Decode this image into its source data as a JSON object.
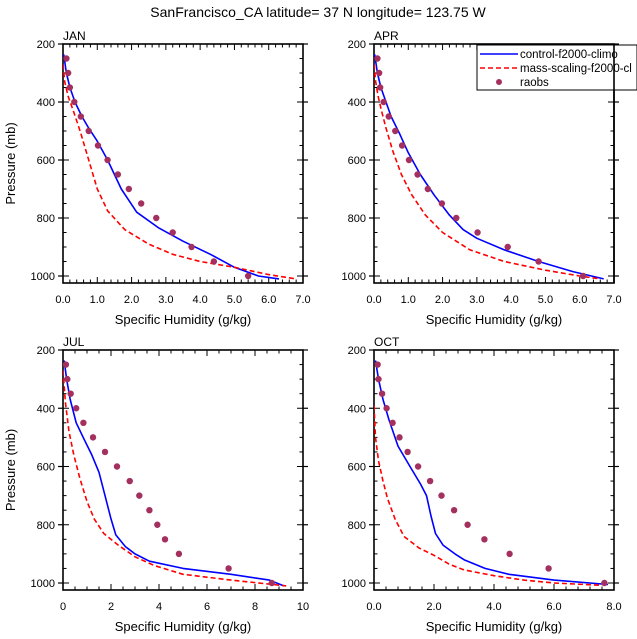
{
  "chart_data": {
    "title": "SanFrancisco_CA  latitude= 37 N longitude= 123.75 W",
    "legend": {
      "placement": "top-right",
      "entries": [
        {
          "name": "control-f2000-climo",
          "color": "#0000ff",
          "style": "solid"
        },
        {
          "name": "mass-scaling-f2000-cl",
          "color": "#ff0000",
          "style": "dashed"
        },
        {
          "name": "raobs",
          "color": "#a3305e",
          "style": "marker"
        }
      ]
    },
    "panels": [
      {
        "type": "line",
        "label": "JAN",
        "xlabel": "Specific Humidity (g/kg)",
        "ylabel": "Pressure (mb)",
        "xlim": [
          0,
          7
        ],
        "ylim": [
          1000,
          200
        ],
        "xticks": [
          "0.0",
          "1.0",
          "2.0",
          "3.0",
          "4.0",
          "5.0",
          "6.0",
          "7.0"
        ],
        "yticks": [
          "200",
          "400",
          "600",
          "800",
          "1000"
        ],
        "show_ylabel": true,
        "show_legend": false,
        "series": [
          {
            "name": "control-f2000-climo",
            "x": [
              0.02,
              0.1,
              0.2,
              0.35,
              0.55,
              0.75,
              1.0,
              1.3,
              1.7,
              2.15,
              2.8,
              3.5,
              4.3,
              5.0,
              5.7,
              6.3
            ],
            "y": [
              236,
              300,
              350,
              400,
              450,
              490,
              535,
              600,
              700,
              780,
              835,
              880,
              925,
              970,
              1000,
              1010
            ]
          },
          {
            "name": "mass-scaling-f2000-cl",
            "x": [
              0.0,
              0.05,
              0.15,
              0.3,
              0.5,
              0.75,
              1.0,
              1.3,
              1.8,
              2.5,
              3.2,
              4.0,
              5.0,
              6.0,
              6.8
            ],
            "y": [
              270,
              330,
              380,
              430,
              500,
              600,
              700,
              775,
              840,
              890,
              925,
              950,
              970,
              995,
              1010
            ]
          },
          {
            "name": "raobs",
            "x": [
              0.1,
              0.15,
              0.2,
              0.33,
              0.52,
              0.75,
              1.02,
              1.3,
              1.6,
              1.92,
              2.28,
              2.72,
              3.2,
              3.75,
              4.4,
              5.4
            ],
            "y": [
              250,
              300,
              350,
              400,
              450,
              500,
              550,
              600,
              650,
              700,
              750,
              800,
              850,
              900,
              950,
              1000
            ]
          }
        ]
      },
      {
        "type": "line",
        "label": "APR",
        "xlabel": "Specific Humidity (g/kg)",
        "ylabel": "",
        "xlim": [
          0,
          7
        ],
        "ylim": [
          1000,
          200
        ],
        "xticks": [
          "0.0",
          "1.0",
          "2.0",
          "3.0",
          "4.0",
          "5.0",
          "6.0",
          "7.0"
        ],
        "yticks": [
          "200",
          "400",
          "600",
          "800",
          "1000"
        ],
        "show_ylabel": false,
        "show_legend": true,
        "series": [
          {
            "name": "control-f2000-climo",
            "x": [
              0.02,
              0.1,
              0.2,
              0.35,
              0.5,
              0.75,
              1.0,
              1.35,
              1.75,
              2.2,
              2.6,
              3.0,
              3.8,
              4.8,
              5.8,
              6.7
            ],
            "y": [
              236,
              300,
              350,
              400,
              450,
              510,
              575,
              650,
              720,
              790,
              840,
              870,
              910,
              950,
              985,
              1010
            ]
          },
          {
            "name": "mass-scaling-f2000-cl",
            "x": [
              0.0,
              0.05,
              0.12,
              0.22,
              0.35,
              0.55,
              0.8,
              1.1,
              1.5,
              2.0,
              2.8,
              3.8,
              5.0,
              6.0,
              6.6
            ],
            "y": [
              270,
              330,
              380,
              430,
              490,
              570,
              650,
              720,
              790,
              850,
              910,
              950,
              980,
              1000,
              1010
            ]
          },
          {
            "name": "raobs",
            "x": [
              0.1,
              0.15,
              0.18,
              0.28,
              0.43,
              0.62,
              0.82,
              1.02,
              1.27,
              1.57,
              1.98,
              2.4,
              3.02,
              3.9,
              4.8,
              6.1
            ],
            "y": [
              250,
              300,
              350,
              400,
              450,
              500,
              550,
              600,
              650,
              700,
              750,
              800,
              850,
              900,
              950,
              1000
            ]
          }
        ]
      },
      {
        "type": "line",
        "label": "JUL",
        "xlabel": "Specific Humidity (g/kg)",
        "ylabel": "Pressure (mb)",
        "xlim": [
          0,
          10
        ],
        "ylim": [
          1000,
          200
        ],
        "xticks": [
          "0",
          "2",
          "4",
          "6",
          "8",
          "10"
        ],
        "yticks": [
          "200",
          "400",
          "600",
          "800",
          "1000"
        ],
        "show_ylabel": true,
        "show_legend": false,
        "series": [
          {
            "name": "control-f2000-climo",
            "x": [
              0.05,
              0.15,
              0.3,
              0.55,
              0.9,
              1.2,
              1.5,
              1.75,
              2.0,
              2.2,
              2.6,
              3.0,
              3.6,
              5.0,
              7.0,
              8.6,
              9.2
            ],
            "y": [
              236,
              300,
              370,
              450,
              510,
              560,
              620,
              700,
              780,
              835,
              875,
              900,
              925,
              950,
              970,
              990,
              1010
            ]
          },
          {
            "name": "mass-scaling-f2000-cl",
            "x": [
              0.0,
              0.1,
              0.25,
              0.45,
              0.7,
              1.0,
              1.3,
              1.7,
              2.3,
              3.0,
              3.8,
              5.0,
              7.0,
              9.3
            ],
            "y": [
              270,
              380,
              480,
              560,
              640,
              720,
              780,
              830,
              870,
              910,
              940,
              970,
              990,
              1010
            ]
          },
          {
            "name": "raobs",
            "x": [
              0.12,
              0.18,
              0.32,
              0.55,
              0.85,
              1.25,
              1.75,
              2.25,
              2.78,
              3.18,
              3.6,
              3.93,
              4.25,
              4.83,
              6.9,
              8.7
            ],
            "y": [
              250,
              300,
              350,
              400,
              450,
              500,
              550,
              600,
              650,
              700,
              750,
              800,
              850,
              900,
              950,
              1000
            ]
          }
        ]
      },
      {
        "type": "line",
        "label": "OCT",
        "xlabel": "Specific Humidity (g/kg)",
        "ylabel": "",
        "xlim": [
          0,
          8
        ],
        "ylim": [
          1000,
          200
        ],
        "xticks": [
          "0.0",
          "2.0",
          "4.0",
          "6.0",
          "8.0"
        ],
        "yticks": [
          "200",
          "400",
          "600",
          "800",
          "1000"
        ],
        "show_ylabel": false,
        "show_legend": false,
        "series": [
          {
            "name": "control-f2000-climo",
            "x": [
              0.05,
              0.15,
              0.3,
              0.5,
              0.8,
              1.2,
              1.55,
              1.75,
              1.9,
              2.05,
              2.3,
              2.7,
              3.0,
              3.7,
              4.5,
              6.0,
              7.8
            ],
            "y": [
              236,
              300,
              370,
              440,
              530,
              600,
              660,
              700,
              770,
              830,
              870,
              900,
              920,
              950,
              970,
              990,
              1005
            ]
          },
          {
            "name": "mass-scaling-f2000-cl",
            "x": [
              0.0,
              0.05,
              0.15,
              0.3,
              0.45,
              0.7,
              1.0,
              1.5,
              2.0,
              2.5,
              3.0,
              4.0,
              5.0,
              6.0,
              7.6
            ],
            "y": [
              390,
              500,
              580,
              650,
              710,
              780,
              840,
              880,
              905,
              935,
              955,
              975,
              990,
              1000,
              1008
            ]
          },
          {
            "name": "raobs",
            "x": [
              0.12,
              0.15,
              0.27,
              0.42,
              0.62,
              0.85,
              1.12,
              1.47,
              1.87,
              2.25,
              2.67,
              3.12,
              3.68,
              4.52,
              5.82,
              7.68
            ],
            "y": [
              250,
              300,
              350,
              400,
              450,
              500,
              550,
              600,
              650,
              700,
              750,
              800,
              850,
              900,
              950,
              1000
            ]
          }
        ]
      }
    ]
  }
}
